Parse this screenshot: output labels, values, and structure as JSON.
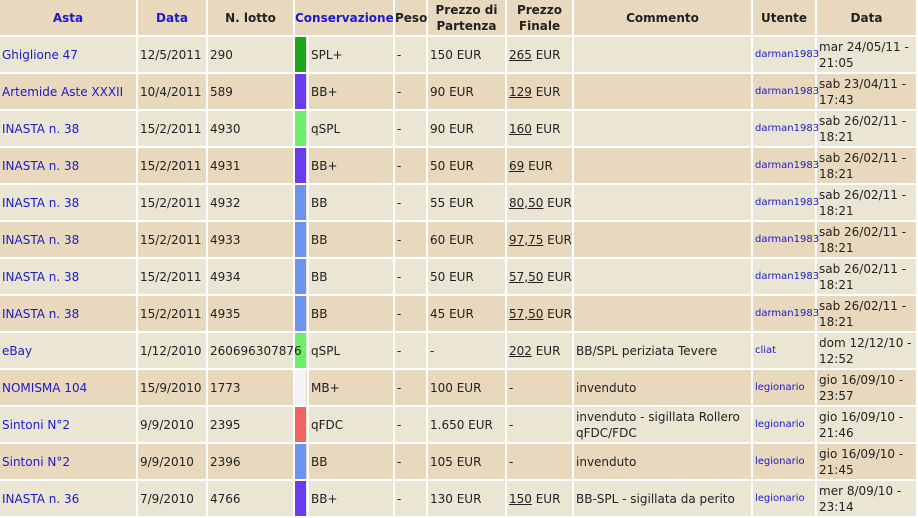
{
  "headers": {
    "asta": "Asta",
    "data": "Data",
    "lotto": "N. lotto",
    "conservazione": "Conservazione",
    "peso": "Peso",
    "prezzo_partenza": "Prezzo di Partenza",
    "prezzo_finale": "Prezzo Finale",
    "commento": "Commento",
    "utente": "Utente",
    "data_inserimento": "Data"
  },
  "rows": [
    {
      "asta": "Ghiglione 47",
      "data": "12/5/2011",
      "lotto": "290",
      "color": "#1aa51a",
      "cons": "SPL+",
      "peso": "-",
      "partenza": "150 EUR",
      "finale_num": "265",
      "finale_unit": " EUR",
      "commento": "",
      "utente": "darman1983",
      "when": "mar 24/05/11 - 21:05"
    },
    {
      "asta": "Artemide Aste XXXII",
      "data": "10/4/2011",
      "lotto": "589",
      "color": "#6a3cf0",
      "cons": "BB+",
      "peso": "-",
      "partenza": "90 EUR",
      "finale_num": "129",
      "finale_unit": " EUR",
      "commento": "",
      "utente": "darman1983",
      "when": "sab 23/04/11 - 17:43"
    },
    {
      "asta": "INASTA n. 38",
      "data": "15/2/2011",
      "lotto": "4930",
      "color": "#6cf06c",
      "cons": "qSPL",
      "peso": "-",
      "partenza": "90 EUR",
      "finale_num": "160",
      "finale_unit": " EUR",
      "commento": "",
      "utente": "darman1983",
      "when": "sab 26/02/11 - 18:21"
    },
    {
      "asta": "INASTA n. 38",
      "data": "15/2/2011",
      "lotto": "4931",
      "color": "#6a3cf0",
      "cons": "BB+",
      "peso": "-",
      "partenza": "50 EUR",
      "finale_num": "69",
      "finale_unit": " EUR",
      "commento": "",
      "utente": "darman1983",
      "when": "sab 26/02/11 - 18:21"
    },
    {
      "asta": "INASTA n. 38",
      "data": "15/2/2011",
      "lotto": "4932",
      "color": "#6a94f0",
      "cons": "BB",
      "peso": "-",
      "partenza": "55 EUR",
      "finale_num": "80,50",
      "finale_unit": " EUR",
      "commento": "",
      "utente": "darman1983",
      "when": "sab 26/02/11 - 18:21"
    },
    {
      "asta": "INASTA n. 38",
      "data": "15/2/2011",
      "lotto": "4933",
      "color": "#6a94f0",
      "cons": "BB",
      "peso": "-",
      "partenza": "60 EUR",
      "finale_num": "97,75",
      "finale_unit": " EUR",
      "commento": "",
      "utente": "darman1983",
      "when": "sab 26/02/11 - 18:21"
    },
    {
      "asta": "INASTA n. 38",
      "data": "15/2/2011",
      "lotto": "4934",
      "color": "#6a94f0",
      "cons": "BB",
      "peso": "-",
      "partenza": "50 EUR",
      "finale_num": "57,50",
      "finale_unit": " EUR",
      "commento": "",
      "utente": "darman1983",
      "when": "sab 26/02/11 - 18:21"
    },
    {
      "asta": "INASTA n. 38",
      "data": "15/2/2011",
      "lotto": "4935",
      "color": "#6a94f0",
      "cons": "BB",
      "peso": "-",
      "partenza": "45 EUR",
      "finale_num": "57,50",
      "finale_unit": " EUR",
      "commento": "",
      "utente": "darman1983",
      "when": "sab 26/02/11 - 18:21"
    },
    {
      "asta": "eBay",
      "data": "1/12/2010",
      "lotto": "260696307876",
      "color": "#6cf06c",
      "cons": "qSPL",
      "peso": "-",
      "partenza": "-",
      "finale_num": "202",
      "finale_unit": " EUR",
      "commento": "BB/SPL periziata Tevere",
      "utente": "cliat",
      "when": "dom 12/12/10 - 12:52"
    },
    {
      "asta": "NOMISMA 104",
      "data": "15/9/2010",
      "lotto": "1773",
      "color": "#f2f2f8",
      "cons": "MB+",
      "peso": "-",
      "partenza": "100 EUR",
      "finale_num": "",
      "finale_unit": "-",
      "commento": "invenduto",
      "utente": "legionario",
      "when": "gio 16/09/10 - 23:57"
    },
    {
      "asta": "Sintoni N°2",
      "data": "9/9/2010",
      "lotto": "2395",
      "color": "#f06464",
      "cons": "qFDC",
      "peso": "-",
      "partenza": "1.650 EUR",
      "finale_num": "",
      "finale_unit": "-",
      "commento": "invenduto - sigillata Rollero qFDC/FDC",
      "utente": "legionario",
      "when": "gio 16/09/10 - 21:46"
    },
    {
      "asta": "Sintoni N°2",
      "data": "9/9/2010",
      "lotto": "2396",
      "color": "#6a94f0",
      "cons": "BB",
      "peso": "-",
      "partenza": "105 EUR",
      "finale_num": "",
      "finale_unit": "-",
      "commento": "invenduto",
      "utente": "legionario",
      "when": "gio 16/09/10 - 21:45"
    },
    {
      "asta": "INASTA n. 36",
      "data": "7/9/2010",
      "lotto": "4766",
      "color": "#6a3cf0",
      "cons": "BB+",
      "peso": "-",
      "partenza": "130 EUR",
      "finale_num": "150",
      "finale_unit": " EUR",
      "commento": "BB-SPL - sigillata da perito",
      "utente": "legionario",
      "when": "mer 8/09/10 - 23:14"
    }
  ]
}
